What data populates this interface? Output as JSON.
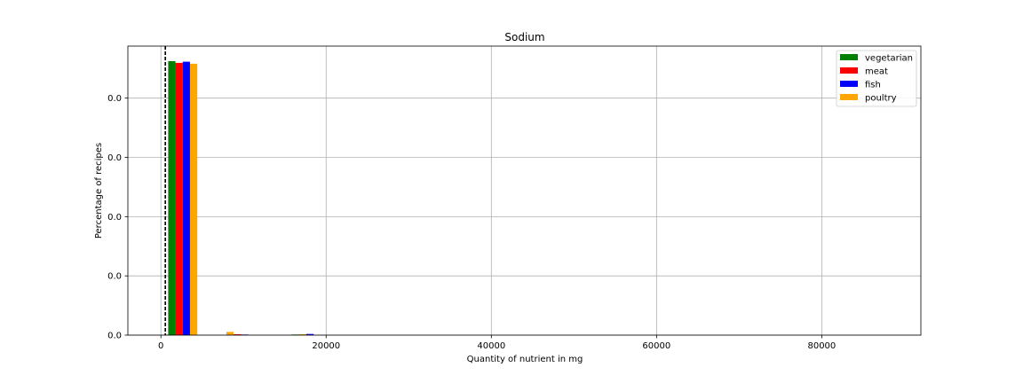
{
  "chart_data": {
    "type": "bar",
    "title": "Sodium",
    "xlabel": "Quantity of nutrient in mg",
    "ylabel": "Percentage of recipes",
    "xlim": [
      -4000,
      92000
    ],
    "ylim": [
      0,
      0.0001
    ],
    "x_ticks": [
      0,
      20000,
      40000,
      60000,
      80000
    ],
    "x_tick_labels": [
      "0",
      "20000",
      "40000",
      "60000",
      "80000"
    ],
    "y_ticks": [
      0,
      2.05e-05,
      4.1e-05,
      6.15e-05,
      8.2e-05
    ],
    "y_tick_labels": [
      "0.0",
      "0.0",
      "0.0",
      "0.0",
      "0.0"
    ],
    "grid": true,
    "legend_placement": "top-right",
    "bin_width": 880,
    "series": [
      {
        "name": "vegetarian",
        "color": "#008000",
        "x": [
          880,
          7920,
          15840
        ],
        "values": [
          9.48e-05,
          3e-07,
          2e-07
        ]
      },
      {
        "name": "meat",
        "color": "#ff0000",
        "x": [
          1760,
          8800,
          16720
        ],
        "values": [
          9.42e-05,
          3e-07,
          3e-07
        ]
      },
      {
        "name": "fish",
        "color": "#0000ff",
        "x": [
          2640,
          9680,
          17600
        ],
        "values": [
          9.46e-05,
          2e-07,
          4e-07
        ]
      },
      {
        "name": "poultry",
        "color": "#ffa500",
        "x": [
          3520,
          7920,
          16720
        ],
        "values": [
          9.39e-05,
          1.1e-06,
          3e-07
        ]
      }
    ],
    "vlines": [
      {
        "x": 490,
        "color": "#008000",
        "style": "dashed"
      },
      {
        "x": 560,
        "color": "#000000",
        "style": "dashed"
      }
    ]
  }
}
